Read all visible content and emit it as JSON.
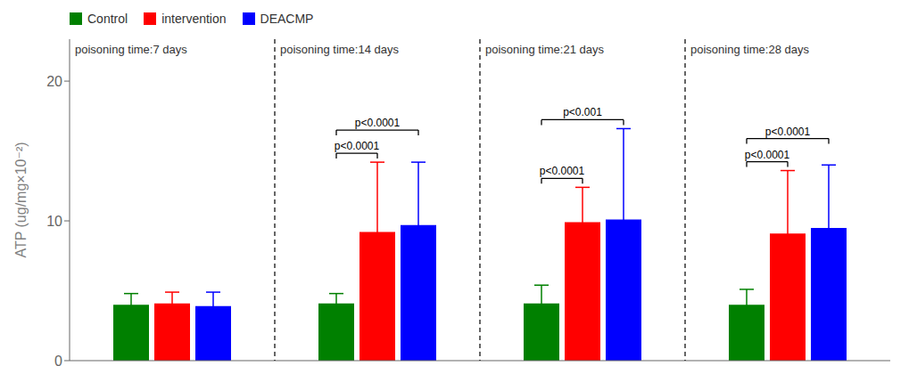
{
  "chart_data": {
    "type": "bar",
    "categories": [
      "poisoning time:7 days",
      "poisoning time:14 days",
      "poisoning time:21 days",
      "poisoning time:28 days"
    ],
    "series": [
      {
        "name": "Control",
        "color": "#008000",
        "values": [
          4.0,
          4.1,
          4.1,
          4.0
        ],
        "errors": [
          0.8,
          0.7,
          1.3,
          1.1
        ]
      },
      {
        "name": "intervention",
        "color": "#FF0000",
        "values": [
          4.1,
          9.2,
          9.9,
          9.1
        ],
        "errors": [
          0.8,
          5.0,
          2.5,
          4.5
        ]
      },
      {
        "name": "DEACMP",
        "color": "#0000FF",
        "values": [
          3.9,
          9.7,
          10.1,
          9.5
        ],
        "errors": [
          1.0,
          4.5,
          6.5,
          4.5
        ]
      }
    ],
    "ylabel": "ATP (ug/mg×10⁻²)",
    "ylim": [
      0,
      23
    ],
    "yticks": [
      0,
      10,
      20
    ],
    "grid": false,
    "legend": "upper left",
    "tick_labels": "y",
    "annotations": [
      {
        "text": "p<0.0001",
        "category": "poisoning time:14 days",
        "from": "Control",
        "to": "intervention"
      },
      {
        "text": "p<0.0001",
        "category": "poisoning time:14 days",
        "from": "Control",
        "to": "DEACMP"
      },
      {
        "text": "p<0.0001",
        "category": "poisoning time:21 days",
        "from": "Control",
        "to": "intervention"
      },
      {
        "text": "p<0.001",
        "category": "poisoning time:21 days",
        "from": "Control",
        "to": "DEACMP"
      },
      {
        "text": "p<0.0001",
        "category": "poisoning time:28 days",
        "from": "Control",
        "to": "intervention"
      },
      {
        "text": "p<0.0001",
        "category": "poisoning time:28 days",
        "from": "Control",
        "to": "DEACMP"
      }
    ]
  }
}
